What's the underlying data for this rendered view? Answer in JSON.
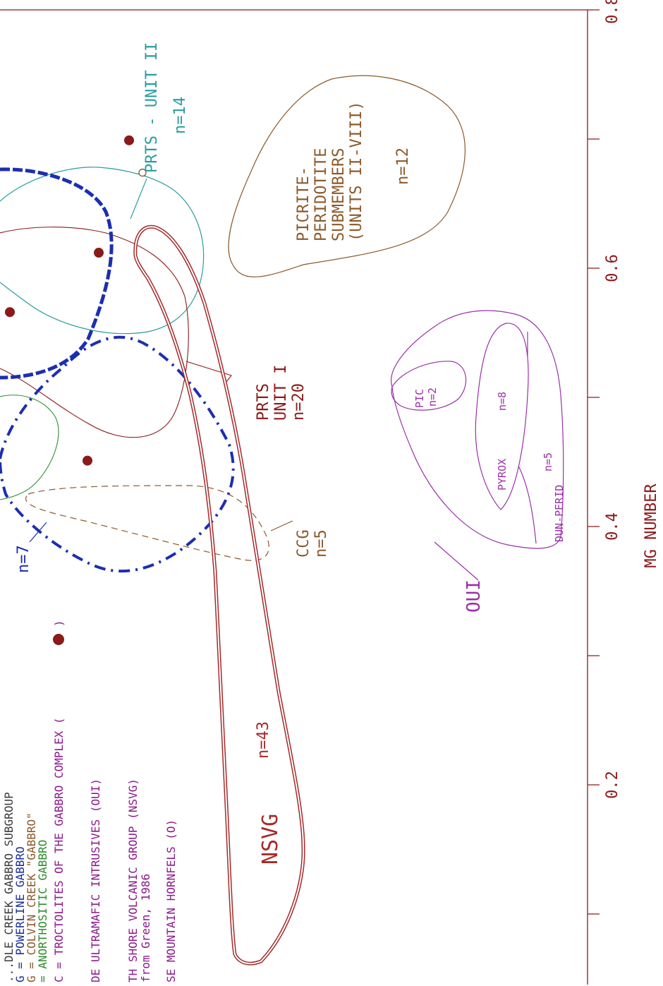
{
  "chart_data": {
    "type": "scatter",
    "xlabel": "MG NUMBER",
    "xlim": [
      0.06,
      0.8
    ],
    "ticks": [
      {
        "value": 0.1,
        "label": ""
      },
      {
        "value": 0.2,
        "label": "0.2"
      },
      {
        "value": 0.3,
        "label": ""
      },
      {
        "value": 0.4,
        "label": "0.4"
      },
      {
        "value": 0.5,
        "label": ""
      },
      {
        "value": 0.6,
        "label": "0.6"
      },
      {
        "value": 0.7,
        "label": ""
      },
      {
        "value": 0.8,
        "label": "0.8"
      }
    ],
    "legend": [
      {
        "text": "...DLE CREEK GABBRO SUBGROUP",
        "color": "#3a3a3a"
      },
      {
        "text": "G = POWERLINE GABBRO",
        "color": "#1c2e9e"
      },
      {
        "text": "G = COLVIN CREEK \"GABBRO\"",
        "color": "#8b5a2b"
      },
      {
        "text": "= ANORTHOSITIC GABBRO",
        "color": "#2e8b2e"
      },
      {
        "text": "C = TROCTOLITES OF THE GABBRO COMPLEX (",
        "color": "#8b1a8b"
      },
      {
        "text": "DE ULTRAMAFIC INTRUSIVES (OUI)",
        "color": "#8b1a8b"
      },
      {
        "text": "TH SHORE VOLCANIC GROUP (NSVG)",
        "color": "#8b1a8b"
      },
      {
        "text": "from Green, 1986",
        "color": "#8b1a8b"
      },
      {
        "text": "SE MOUNTAIN HORNFELS (O)",
        "color": "#8b1a8b"
      }
    ],
    "legend_close": ")",
    "labels": {
      "prts2_name": "PRTS - UNIT II",
      "prts2_n": "n=14",
      "picrite1": "PICRITE-",
      "picrite2": "PERIDOTITE",
      "picrite3": "SUBMEMBERS",
      "picrite4": "(UNITS II-VIII)",
      "picrite_n": "n=12",
      "prts1_name": "PRTS",
      "prts1_unit": "UNIT I",
      "prts1_n": "n=20",
      "ccg_name": "CCG",
      "ccg_n": "n=5",
      "pg_n": "n=7",
      "nsvg_name": "NSVG",
      "nsvg_n": "n=43",
      "pic_name": "PIC",
      "pic_n": "n=2",
      "pyrox_name": "PYROX",
      "pyrox_n": "n=8",
      "dun_name": "DUN-PERID",
      "dun_n": "n=5",
      "oui_name": "OUI"
    },
    "troctolite_points_mg": [
      0.566,
      0.699,
      0.451,
      0.612
    ],
    "hornfels_points_mg": [
      0.674
    ],
    "colors": {
      "axis": "#8b1a1a",
      "nsvg": "#a52a2a",
      "prts2": "#2a9d9d",
      "picrite": "#8b5a2b",
      "prts1": "#a52a2a",
      "powerline": "#1c2eb0",
      "anorthositic": "#2e8b2e",
      "ccg": "#8b5a2b",
      "oui": "#9b30a8",
      "troctolite": "#8b1a1a"
    }
  }
}
